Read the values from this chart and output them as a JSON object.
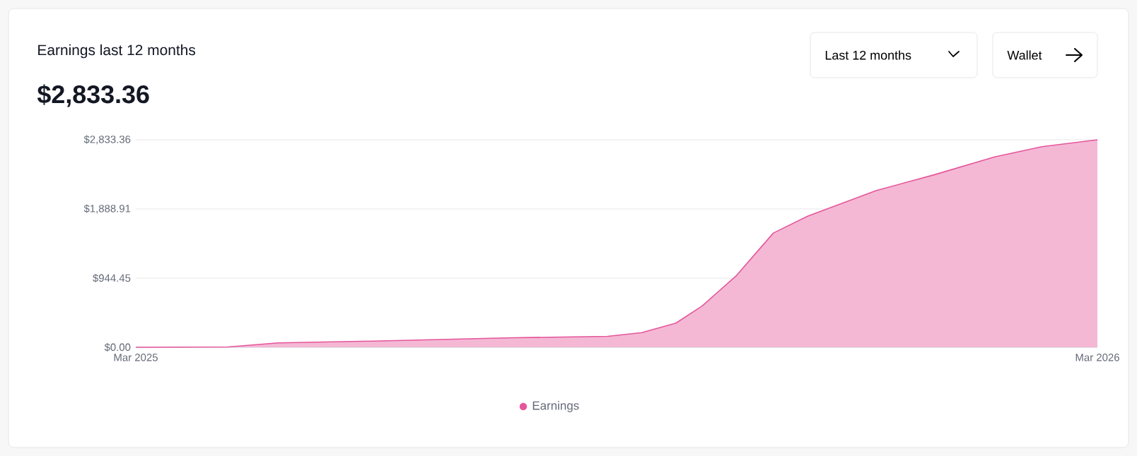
{
  "chart_data": {
    "type": "area",
    "title": "Earnings last 12 months",
    "subtitle": "$2,833.36",
    "annotations": [
      "Last 12 months",
      "Wallet"
    ],
    "x": [
      "2025-03-01",
      "2025-04-05",
      "2025-04-24",
      "2025-05-30",
      "2025-07-22",
      "2025-08-27",
      "2025-09-09",
      "2025-09-22",
      "2025-10-02",
      "2025-10-15",
      "2025-10-29",
      "2025-11-11",
      "2025-12-07",
      "2025-12-29",
      "2026-01-21",
      "2026-02-08",
      "2026-03-01"
    ],
    "series": [
      {
        "name": "Earnings",
        "color": "#e5569a",
        "values": [
          0,
          5,
          60,
          85,
          130,
          150,
          200,
          330,
          565,
          980,
          1560,
          1790,
          2140,
          2355,
          2600,
          2740,
          2833.36
        ]
      }
    ],
    "xlim": [
      "2025-03-01",
      "2026-03-01"
    ],
    "xticks": [
      {
        "value": "2025-03-01",
        "label": "Mar 2025"
      },
      {
        "value": "2026-03-01",
        "label": "Mar 2026"
      }
    ],
    "ylim": [
      0,
      2833.36
    ],
    "yticks": [
      {
        "value": 0,
        "label": "$0.00"
      },
      {
        "value": 944.45,
        "label": "$944.45"
      },
      {
        "value": 1888.91,
        "label": "$1,888.91"
      },
      {
        "value": 2833.36,
        "label": "$2,833.36"
      }
    ],
    "grid": "y",
    "legend": "bottom"
  }
}
